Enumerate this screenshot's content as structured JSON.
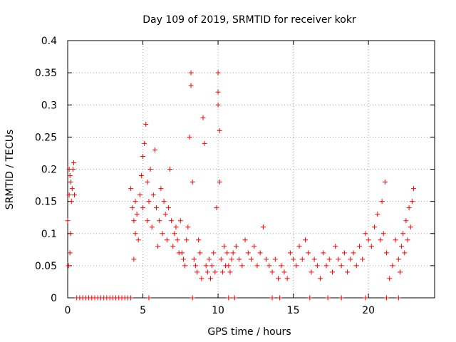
{
  "chart_data": {
    "type": "scatter",
    "title": "Day 109 of 2019, SRMTID for receiver kokr",
    "xlabel": "GPS time / hours",
    "ylabel": "SRMTID / TECUs",
    "xlim": [
      0,
      24.4
    ],
    "ylim": [
      0,
      0.4
    ],
    "xticks": [
      0,
      5,
      10,
      15,
      20
    ],
    "xtick_labels": [
      "0",
      "5",
      "10",
      "15",
      "20"
    ],
    "yticks": [
      0,
      0.05,
      0.1,
      0.15,
      0.2,
      0.25,
      0.3,
      0.35,
      0.4
    ],
    "ytick_labels": [
      "0",
      "0.05",
      "0.1",
      "0.15",
      "0.2",
      "0.25",
      "0.3",
      "0.35",
      "0.4"
    ],
    "grid": true,
    "marker": "+",
    "color": "#ff0000",
    "series": [
      {
        "name": "SRMTID",
        "x": [
          0.0,
          0.05,
          0.1,
          0.1,
          0.15,
          0.15,
          0.2,
          0.2,
          0.25,
          0.3,
          0.35,
          0.4,
          0.45,
          4.2,
          4.3,
          4.4,
          4.4,
          4.5,
          4.5,
          4.6,
          4.7,
          4.8,
          4.9,
          5.0,
          5.0,
          5.1,
          5.2,
          5.3,
          5.3,
          5.4,
          5.5,
          5.6,
          5.7,
          5.8,
          5.9,
          6.0,
          6.1,
          6.2,
          6.3,
          6.4,
          6.5,
          6.6,
          6.7,
          6.8,
          6.9,
          7.0,
          7.1,
          7.2,
          7.3,
          7.4,
          7.5,
          7.6,
          7.7,
          7.8,
          7.9,
          8.0,
          8.1,
          8.2,
          8.2,
          8.3,
          8.4,
          8.5,
          8.6,
          8.7,
          8.8,
          8.9,
          9.0,
          9.1,
          9.2,
          9.3,
          9.4,
          9.5,
          9.6,
          9.7,
          9.8,
          9.9,
          10.0,
          10.0,
          10.0,
          10.1,
          10.1,
          10.2,
          10.3,
          10.4,
          10.5,
          10.6,
          10.7,
          10.8,
          10.9,
          11.0,
          11.2,
          11.4,
          11.6,
          11.8,
          12.0,
          12.2,
          12.4,
          12.6,
          12.8,
          13.0,
          13.2,
          13.4,
          13.6,
          13.8,
          14.0,
          14.2,
          14.4,
          14.6,
          14.8,
          15.0,
          15.2,
          15.4,
          15.6,
          15.8,
          16.0,
          16.2,
          16.4,
          16.6,
          16.8,
          17.0,
          17.2,
          17.4,
          17.6,
          17.8,
          18.0,
          18.2,
          18.4,
          18.6,
          18.8,
          19.0,
          19.2,
          19.4,
          19.6,
          19.8,
          20.0,
          20.2,
          20.4,
          20.6,
          20.8,
          20.9,
          21.0,
          21.1,
          21.2,
          21.4,
          21.6,
          21.8,
          22.0,
          22.1,
          22.2,
          22.3,
          22.4,
          22.5,
          22.6,
          22.7,
          22.8,
          22.9,
          23.0,
          0.6,
          0.8,
          1.0,
          1.2,
          1.4,
          1.6,
          1.8,
          2.0,
          2.2,
          2.4,
          2.6,
          2.8,
          3.0,
          3.2,
          3.4,
          3.6,
          3.8,
          4.0,
          4.2,
          5.4,
          8.3,
          10.7,
          11.1,
          13.6,
          14.1,
          16.1,
          17.3,
          18.2,
          19.8,
          21.2,
          22.0
        ],
        "y": [
          0.12,
          0.05,
          0.16,
          0.2,
          0.07,
          0.19,
          0.1,
          0.18,
          0.15,
          0.17,
          0.2,
          0.21,
          0.16,
          0.17,
          0.14,
          0.06,
          0.12,
          0.1,
          0.15,
          0.13,
          0.09,
          0.16,
          0.19,
          0.14,
          0.22,
          0.24,
          0.27,
          0.18,
          0.12,
          0.15,
          0.2,
          0.11,
          0.16,
          0.23,
          0.14,
          0.08,
          0.12,
          0.17,
          0.1,
          0.15,
          0.13,
          0.09,
          0.14,
          0.2,
          0.12,
          0.08,
          0.1,
          0.11,
          0.09,
          0.07,
          0.12,
          0.07,
          0.06,
          0.05,
          0.09,
          0.11,
          0.25,
          0.35,
          0.33,
          0.18,
          0.06,
          0.05,
          0.04,
          0.09,
          0.07,
          0.03,
          0.28,
          0.24,
          0.05,
          0.04,
          0.06,
          0.03,
          0.05,
          0.07,
          0.04,
          0.14,
          0.35,
          0.32,
          0.3,
          0.26,
          0.18,
          0.06,
          0.04,
          0.08,
          0.05,
          0.07,
          0.05,
          0.04,
          0.06,
          0.07,
          0.08,
          0.06,
          0.05,
          0.09,
          0.07,
          0.06,
          0.08,
          0.05,
          0.07,
          0.11,
          0.06,
          0.05,
          0.04,
          0.06,
          0.03,
          0.05,
          0.04,
          0.03,
          0.07,
          0.06,
          0.05,
          0.08,
          0.06,
          0.09,
          0.07,
          0.04,
          0.06,
          0.05,
          0.03,
          0.07,
          0.05,
          0.06,
          0.04,
          0.08,
          0.06,
          0.05,
          0.07,
          0.04,
          0.06,
          0.07,
          0.05,
          0.08,
          0.06,
          0.1,
          0.09,
          0.08,
          0.11,
          0.13,
          0.09,
          0.15,
          0.1,
          0.18,
          0.07,
          0.03,
          0.05,
          0.09,
          0.06,
          0.04,
          0.08,
          0.1,
          0.07,
          0.12,
          0.09,
          0.14,
          0.11,
          0.15,
          0.17,
          0,
          0,
          0,
          0,
          0,
          0,
          0,
          0,
          0,
          0,
          0,
          0,
          0,
          0,
          0,
          0,
          0,
          0,
          0,
          0,
          0,
          0,
          0,
          0,
          0,
          0,
          0,
          0,
          0,
          0,
          0
        ]
      }
    ]
  }
}
